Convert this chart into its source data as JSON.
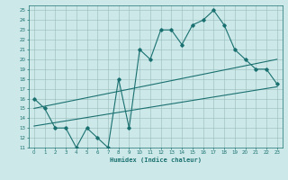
{
  "xlabel": "Humidex (Indice chaleur)",
  "ylabel": "",
  "xlim": [
    -0.5,
    23.5
  ],
  "ylim": [
    11,
    25.5
  ],
  "xticks": [
    0,
    1,
    2,
    3,
    4,
    5,
    6,
    7,
    8,
    9,
    10,
    11,
    12,
    13,
    14,
    15,
    16,
    17,
    18,
    19,
    20,
    21,
    22,
    23
  ],
  "yticks": [
    11,
    12,
    13,
    14,
    15,
    16,
    17,
    18,
    19,
    20,
    21,
    22,
    23,
    24,
    25
  ],
  "bg_color": "#cce8e8",
  "grid_color": "#99bbbb",
  "line_color": "#1a7070",
  "main_line_x": [
    0,
    1,
    2,
    3,
    4,
    5,
    6,
    7,
    8,
    9,
    10,
    11,
    12,
    13,
    14,
    15,
    16,
    17,
    18,
    19,
    20,
    21,
    22,
    23
  ],
  "main_line_y": [
    16,
    15,
    13,
    13,
    11,
    13,
    12,
    11,
    18,
    13,
    21,
    20,
    23,
    23,
    21.5,
    23.5,
    24,
    25,
    23.5,
    21,
    20,
    19,
    19,
    17.5
  ],
  "reg_line1_x": [
    0,
    23
  ],
  "reg_line1_y": [
    15.0,
    20.0
  ],
  "reg_line2_x": [
    0,
    23
  ],
  "reg_line2_y": [
    13.2,
    17.2
  ]
}
